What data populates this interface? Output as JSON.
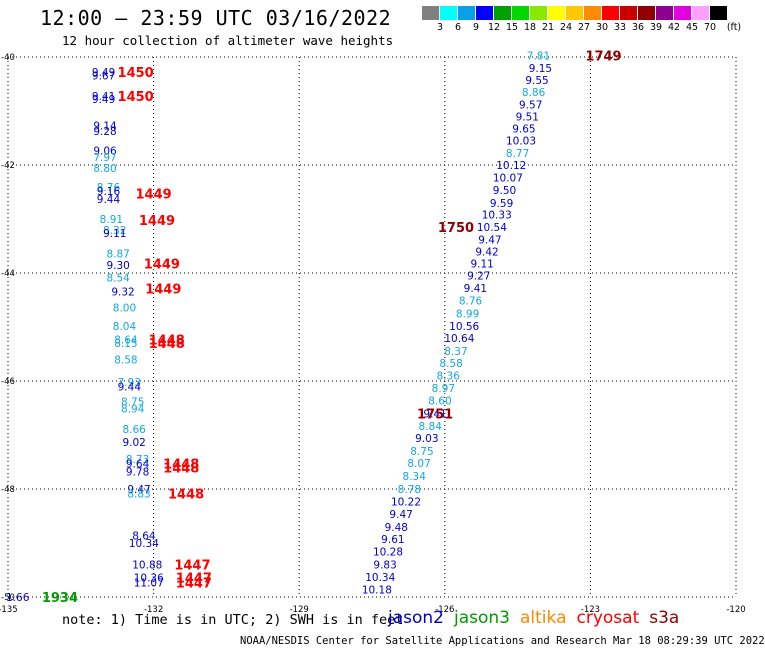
{
  "header": {
    "title": "12:00 — 23:59 UTC 03/16/2022",
    "subtitle": "12 hour collection of altimeter wave heights"
  },
  "legend": {
    "unit": "(ft)",
    "ticks": [
      "3",
      "6",
      "9",
      "12",
      "15",
      "18",
      "21",
      "24",
      "27",
      "30",
      "33",
      "36",
      "39",
      "42",
      "45",
      "70"
    ],
    "colors": [
      "#808080",
      "#00ffff",
      "#0aa0e8",
      "#0000ff",
      "#00a000",
      "#00d800",
      "#88e800",
      "#ffff00",
      "#ffc800",
      "#ff8c00",
      "#ff0000",
      "#c80000",
      "#900000",
      "#900090",
      "#e000e0",
      "#ffa0ff",
      "#000000"
    ]
  },
  "axes": {
    "lon_labels": [
      "-135",
      "-132",
      "-129",
      "-126",
      "-123",
      "-120"
    ],
    "lat_labels": [
      "-40",
      "-42",
      "-44",
      "-46",
      "-48",
      "-50"
    ],
    "lon_values": [
      -135,
      -132,
      -129,
      -126,
      -123,
      -120
    ],
    "lat_values": [
      -40,
      -42,
      -44,
      -46,
      -48,
      -50
    ]
  },
  "colors": {
    "jason2": "#0000cc",
    "jason3": "#009900",
    "altika": "#ff8800",
    "cryosat": "#ff0000",
    "s3a": "#900000",
    "light": "#12a8e0",
    "dark": "#0000cc"
  },
  "chart_data": {
    "type": "scatter",
    "title": "12:00 — 23:59 UTC 03/16/2022",
    "subtitle": "12 hour collection of altimeter wave heights",
    "x_range": [
      -135,
      -120
    ],
    "y_range": [
      -40,
      -50
    ],
    "points": [
      {
        "lon": -124.07,
        "lat": -39.97,
        "v": "7.81",
        "c": "light"
      },
      {
        "lon": -124.03,
        "lat": -40.2,
        "v": "9.15",
        "c": "dark"
      },
      {
        "lon": -124.1,
        "lat": -40.43,
        "v": "9.55",
        "c": "dark"
      },
      {
        "lon": -124.17,
        "lat": -40.65,
        "v": "8.86",
        "c": "light"
      },
      {
        "lon": -124.23,
        "lat": -40.88,
        "v": "9.57",
        "c": "dark"
      },
      {
        "lon": -124.3,
        "lat": -41.1,
        "v": "9.51",
        "c": "dark"
      },
      {
        "lon": -124.37,
        "lat": -41.32,
        "v": "9.65",
        "c": "dark"
      },
      {
        "lon": -124.43,
        "lat": -41.55,
        "v": "10.03",
        "c": "dark"
      },
      {
        "lon": -124.5,
        "lat": -41.78,
        "v": "8.77",
        "c": "light"
      },
      {
        "lon": -124.63,
        "lat": -42.0,
        "v": "10.12",
        "c": "dark"
      },
      {
        "lon": -124.7,
        "lat": -42.23,
        "v": "10.07",
        "c": "dark"
      },
      {
        "lon": -124.77,
        "lat": -42.46,
        "v": "9.50",
        "c": "dark"
      },
      {
        "lon": -124.83,
        "lat": -42.7,
        "v": "9.59",
        "c": "dark"
      },
      {
        "lon": -124.93,
        "lat": -42.92,
        "v": "10.33",
        "c": "dark"
      },
      {
        "lon": -125.03,
        "lat": -43.15,
        "v": "10.54",
        "c": "dark"
      },
      {
        "lon": -125.07,
        "lat": -43.38,
        "v": "9.47",
        "c": "dark"
      },
      {
        "lon": -125.13,
        "lat": -43.6,
        "v": "9.42",
        "c": "dark"
      },
      {
        "lon": -125.23,
        "lat": -43.82,
        "v": "9.11",
        "c": "dark"
      },
      {
        "lon": -125.3,
        "lat": -44.05,
        "v": "9.27",
        "c": "dark"
      },
      {
        "lon": -125.37,
        "lat": -44.28,
        "v": "9.41",
        "c": "dark"
      },
      {
        "lon": -125.47,
        "lat": -44.51,
        "v": "8.76",
        "c": "light"
      },
      {
        "lon": -125.53,
        "lat": -44.75,
        "v": "8.99",
        "c": "light"
      },
      {
        "lon": -125.6,
        "lat": -44.98,
        "v": "10.56",
        "c": "dark"
      },
      {
        "lon": -125.7,
        "lat": -45.2,
        "v": "10.64",
        "c": "dark"
      },
      {
        "lon": -125.77,
        "lat": -45.44,
        "v": "8.37",
        "c": "light"
      },
      {
        "lon": -125.87,
        "lat": -45.67,
        "v": "8.58",
        "c": "light"
      },
      {
        "lon": -125.93,
        "lat": -45.9,
        "v": "8.36",
        "c": "light"
      },
      {
        "lon": -126.03,
        "lat": -46.13,
        "v": "8.97",
        "c": "light"
      },
      {
        "lon": -126.1,
        "lat": -46.36,
        "v": "8.60",
        "c": "light"
      },
      {
        "lon": -126.2,
        "lat": -46.6,
        "v": "9.41",
        "c": "dark"
      },
      {
        "lon": -126.3,
        "lat": -46.83,
        "v": "8.84",
        "c": "light"
      },
      {
        "lon": -126.37,
        "lat": -47.06,
        "v": "9.03",
        "c": "dark"
      },
      {
        "lon": -126.47,
        "lat": -47.3,
        "v": "8.75",
        "c": "light"
      },
      {
        "lon": -126.53,
        "lat": -47.52,
        "v": "8.07",
        "c": "light"
      },
      {
        "lon": -126.63,
        "lat": -47.76,
        "v": "8.34",
        "c": "light"
      },
      {
        "lon": -126.73,
        "lat": -48.0,
        "v": "8.78",
        "c": "light"
      },
      {
        "lon": -126.8,
        "lat": -48.23,
        "v": "10.22",
        "c": "dark"
      },
      {
        "lon": -126.9,
        "lat": -48.46,
        "v": "9.47",
        "c": "dark"
      },
      {
        "lon": -127.0,
        "lat": -48.7,
        "v": "9.48",
        "c": "dark"
      },
      {
        "lon": -127.07,
        "lat": -48.93,
        "v": "9.61",
        "c": "dark"
      },
      {
        "lon": -127.17,
        "lat": -49.16,
        "v": "10.28",
        "c": "dark"
      },
      {
        "lon": -127.23,
        "lat": -49.4,
        "v": "9.83",
        "c": "dark"
      },
      {
        "lon": -127.33,
        "lat": -49.63,
        "v": "10.34",
        "c": "dark"
      },
      {
        "lon": -127.4,
        "lat": -49.86,
        "v": "10.18",
        "c": "dark"
      },
      {
        "lon": -133.03,
        "lat": -40.28,
        "v": "9.49",
        "c": "dark"
      },
      {
        "lon": -133.03,
        "lat": -40.34,
        "v": "9.67",
        "c": "dark"
      },
      {
        "lon": -133.03,
        "lat": -40.72,
        "v": "9.41",
        "c": "dark"
      },
      {
        "lon": -133.03,
        "lat": -40.78,
        "v": "9.49",
        "c": "dark"
      },
      {
        "lon": -133.0,
        "lat": -41.27,
        "v": "9.14",
        "c": "dark"
      },
      {
        "lon": -133.0,
        "lat": -41.37,
        "v": "9.28",
        "c": "dark"
      },
      {
        "lon": -133.0,
        "lat": -41.73,
        "v": "9.06",
        "c": "dark"
      },
      {
        "lon": -133.0,
        "lat": -41.85,
        "v": "7.97",
        "c": "light"
      },
      {
        "lon": -133.0,
        "lat": -42.06,
        "v": "8.80",
        "c": "light"
      },
      {
        "lon": -132.93,
        "lat": -42.41,
        "v": "8.76",
        "c": "light"
      },
      {
        "lon": -132.93,
        "lat": -42.48,
        "v": "9.16",
        "c": "dark"
      },
      {
        "lon": -132.93,
        "lat": -42.63,
        "v": "9.44",
        "c": "dark"
      },
      {
        "lon": -132.87,
        "lat": -43.0,
        "v": "8.91",
        "c": "light"
      },
      {
        "lon": -132.8,
        "lat": -43.2,
        "v": "8.32",
        "c": "light"
      },
      {
        "lon": -132.8,
        "lat": -43.26,
        "v": "9.11",
        "c": "dark"
      },
      {
        "lon": -132.73,
        "lat": -43.64,
        "v": "8.87",
        "c": "light"
      },
      {
        "lon": -132.73,
        "lat": -43.85,
        "v": "9.30",
        "c": "dark"
      },
      {
        "lon": -132.73,
        "lat": -44.08,
        "v": "8.54",
        "c": "light"
      },
      {
        "lon": -132.63,
        "lat": -44.34,
        "v": "9.32",
        "c": "dark"
      },
      {
        "lon": -132.6,
        "lat": -44.64,
        "v": "8.00",
        "c": "light"
      },
      {
        "lon": -132.6,
        "lat": -44.98,
        "v": "8.04",
        "c": "light"
      },
      {
        "lon": -132.57,
        "lat": -45.23,
        "v": "8.64",
        "c": "light"
      },
      {
        "lon": -132.57,
        "lat": -45.3,
        "v": "8.15",
        "c": "light"
      },
      {
        "lon": -132.57,
        "lat": -45.6,
        "v": "8.58",
        "c": "light"
      },
      {
        "lon": -132.5,
        "lat": -46.02,
        "v": "7.93",
        "c": "light"
      },
      {
        "lon": -132.5,
        "lat": -46.1,
        "v": "9.44",
        "c": "dark"
      },
      {
        "lon": -132.43,
        "lat": -46.38,
        "v": "8.75",
        "c": "light"
      },
      {
        "lon": -132.43,
        "lat": -46.51,
        "v": "8.94",
        "c": "light"
      },
      {
        "lon": -132.4,
        "lat": -46.89,
        "v": "8.66",
        "c": "light"
      },
      {
        "lon": -132.4,
        "lat": -47.13,
        "v": "9.02",
        "c": "dark"
      },
      {
        "lon": -132.33,
        "lat": -47.44,
        "v": "8.73",
        "c": "light"
      },
      {
        "lon": -132.33,
        "lat": -47.53,
        "v": "9.64",
        "c": "dark"
      },
      {
        "lon": -132.33,
        "lat": -47.68,
        "v": "9.78",
        "c": "dark"
      },
      {
        "lon": -132.3,
        "lat": -48.0,
        "v": "9.47",
        "c": "dark"
      },
      {
        "lon": -132.3,
        "lat": -48.08,
        "v": "8.83",
        "c": "light"
      },
      {
        "lon": -132.2,
        "lat": -48.86,
        "v": "8.64",
        "c": "dark"
      },
      {
        "lon": -132.2,
        "lat": -49.0,
        "v": "10.34",
        "c": "dark"
      },
      {
        "lon": -132.13,
        "lat": -49.4,
        "v": "10.88",
        "c": "dark"
      },
      {
        "lon": -132.1,
        "lat": -49.64,
        "v": "10.36",
        "c": "dark"
      },
      {
        "lon": -132.1,
        "lat": -49.73,
        "v": "11.07",
        "c": "dark"
      },
      {
        "lon": -134.8,
        "lat": -50.0,
        "v": "1.66",
        "c": "dark"
      }
    ],
    "time_labels": [
      {
        "lon": -122.73,
        "lat": -39.97,
        "t": "1749",
        "sat": "s3a"
      },
      {
        "lon": -125.77,
        "lat": -43.15,
        "t": "1750",
        "sat": "s3a"
      },
      {
        "lon": -126.2,
        "lat": -46.6,
        "t": "1751",
        "sat": "s3a"
      },
      {
        "lon": -132.37,
        "lat": -40.28,
        "t": "1450",
        "sat": "cryosat"
      },
      {
        "lon": -132.37,
        "lat": -40.72,
        "t": "1450",
        "sat": "cryosat"
      },
      {
        "lon": -132.0,
        "lat": -42.53,
        "t": "1449",
        "sat": "cryosat"
      },
      {
        "lon": -131.93,
        "lat": -43.02,
        "t": "1449",
        "sat": "cryosat"
      },
      {
        "lon": -131.83,
        "lat": -43.82,
        "t": "1449",
        "sat": "cryosat"
      },
      {
        "lon": -131.8,
        "lat": -44.29,
        "t": "1449",
        "sat": "cryosat"
      },
      {
        "lon": -131.73,
        "lat": -45.23,
        "t": "1448",
        "sat": "cryosat"
      },
      {
        "lon": -131.73,
        "lat": -45.3,
        "t": "1448",
        "sat": "cryosat"
      },
      {
        "lon": -131.43,
        "lat": -47.53,
        "t": "1448",
        "sat": "cryosat"
      },
      {
        "lon": -131.43,
        "lat": -47.6,
        "t": "1448",
        "sat": "cryosat"
      },
      {
        "lon": -131.33,
        "lat": -48.08,
        "t": "1448",
        "sat": "cryosat"
      },
      {
        "lon": -131.2,
        "lat": -49.4,
        "t": "1447",
        "sat": "cryosat"
      },
      {
        "lon": -131.17,
        "lat": -49.64,
        "t": "1447",
        "sat": "cryosat"
      },
      {
        "lon": -131.17,
        "lat": -49.73,
        "t": "1447",
        "sat": "cryosat"
      },
      {
        "lon": -133.93,
        "lat": -50.0,
        "t": "1934",
        "sat": "jason3"
      }
    ]
  },
  "footer": {
    "note": "note:  1) Time is in UTC; 2) SWH is in feet",
    "satellites": [
      {
        "name": "jason2",
        "color": "#0000cc"
      },
      {
        "name": "jason3",
        "color": "#009900"
      },
      {
        "name": "altika",
        "color": "#ff8800"
      },
      {
        "name": "cryosat",
        "color": "#ff0000"
      },
      {
        "name": "s3a",
        "color": "#900000"
      }
    ],
    "credit": "NOAA/NESDIS Center for Satellite Applications and Research   Mar 18 08:29:39 UTC 2022"
  }
}
